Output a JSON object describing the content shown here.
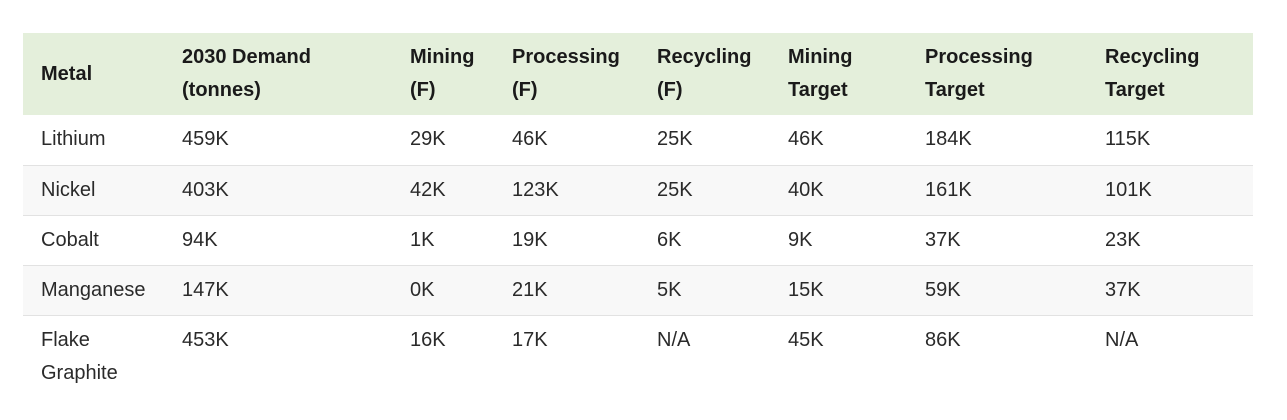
{
  "table": {
    "headers": [
      [
        "Metal"
      ],
      [
        "2030 Demand",
        "(tonnes)"
      ],
      [
        "Mining",
        "(F)"
      ],
      [
        "Processing",
        "(F)"
      ],
      [
        "Recycling",
        "(F)"
      ],
      [
        "Mining",
        "Target"
      ],
      [
        "Processing",
        "Target"
      ],
      [
        "Recycling",
        "Target"
      ]
    ],
    "rows": [
      [
        "Lithium",
        "459K",
        "29K",
        "46K",
        "25K",
        "46K",
        "184K",
        "115K"
      ],
      [
        "Nickel",
        "403K",
        "42K",
        "123K",
        "25K",
        "40K",
        "161K",
        "101K"
      ],
      [
        "Cobalt",
        "94K",
        "1K",
        "19K",
        "6K",
        "9K",
        "37K",
        "23K"
      ],
      [
        "Manganese",
        "147K",
        "0K",
        "21K",
        "5K",
        "15K",
        "59K",
        "37K"
      ],
      [
        "Flake Graphite",
        "453K",
        "16K",
        "17K",
        "N/A",
        "45K",
        "86K",
        "N/A"
      ]
    ]
  }
}
